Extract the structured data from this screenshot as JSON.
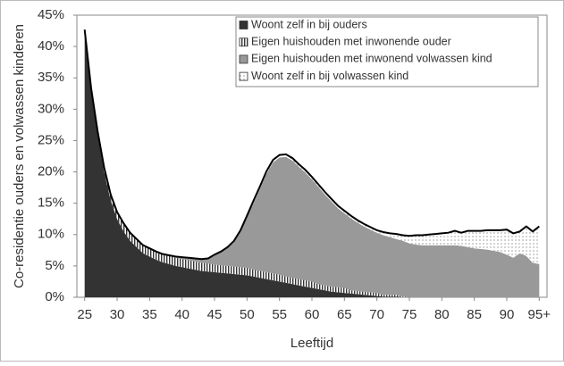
{
  "chart_data": {
    "type": "stacked-area",
    "y_label": "Co-residentie ouders en volwassen kinderen",
    "x_label": "Leeftijd",
    "x": [
      25,
      26,
      27,
      28,
      29,
      30,
      31,
      32,
      33,
      34,
      35,
      36,
      37,
      38,
      39,
      40,
      41,
      42,
      43,
      44,
      45,
      46,
      47,
      48,
      49,
      50,
      51,
      52,
      53,
      54,
      55,
      56,
      57,
      58,
      59,
      60,
      61,
      62,
      63,
      64,
      65,
      66,
      67,
      68,
      69,
      70,
      71,
      72,
      73,
      74,
      75,
      76,
      77,
      78,
      79,
      80,
      81,
      82,
      83,
      84,
      85,
      86,
      87,
      88,
      89,
      90,
      91,
      92,
      93,
      94,
      95
    ],
    "xlim": [
      23.8,
      96.2
    ],
    "xticks": [
      25,
      30,
      35,
      40,
      45,
      50,
      55,
      60,
      65,
      70,
      75,
      80,
      85,
      90,
      {
        "value": 95,
        "label": "95+"
      }
    ],
    "ylim": [
      0,
      45
    ],
    "yticks": [
      {
        "value": 0,
        "label": "0%"
      },
      {
        "value": 5,
        "label": "5%"
      },
      {
        "value": 10,
        "label": "10%"
      },
      {
        "value": 15,
        "label": "15%"
      },
      {
        "value": 20,
        "label": "20%"
      },
      {
        "value": 25,
        "label": "25%"
      },
      {
        "value": 30,
        "label": "30%"
      },
      {
        "value": 35,
        "label": "35%"
      },
      {
        "value": 40,
        "label": "40%"
      },
      {
        "value": 45,
        "label": "45%"
      }
    ],
    "grid": false,
    "legend": "upper right",
    "series": [
      {
        "name": "Woont zelf in bij ouders",
        "color": "#333333",
        "pattern": "solid",
        "values": [
          42.5,
          33,
          26,
          20,
          15.5,
          12.5,
          10.5,
          9,
          8,
          7,
          6.5,
          6,
          5.6,
          5.3,
          5,
          4.8,
          4.6,
          4.4,
          4.2,
          4.1,
          4.0,
          3.9,
          3.8,
          3.7,
          3.6,
          3.5,
          3.3,
          3.1,
          2.9,
          2.7,
          2.5,
          2.3,
          2.1,
          1.9,
          1.7,
          1.5,
          1.3,
          1.1,
          0.9,
          0.8,
          0.7,
          0.6,
          0.5,
          0.4,
          0.3,
          0.2,
          0.1,
          0.1,
          0.1,
          0,
          0,
          0,
          0,
          0,
          0,
          0,
          0,
          0,
          0,
          0,
          0,
          0,
          0,
          0,
          0,
          0,
          0,
          0,
          0,
          0,
          0
        ]
      },
      {
        "name": "Eigen huishouden met inwonende ouder",
        "color": "#333333",
        "pattern": "stripes",
        "values": [
          0.2,
          0.3,
          0.5,
          0.7,
          0.9,
          1.1,
          1.3,
          1.3,
          1.3,
          1.3,
          1.3,
          1.3,
          1.3,
          1.3,
          1.3,
          1.3,
          1.3,
          1.3,
          1.3,
          1.3,
          1.2,
          1.2,
          1.2,
          1.2,
          1.2,
          1.2,
          1.1,
          1.1,
          1.1,
          1.1,
          1.1,
          1.0,
          1.0,
          1.0,
          1.0,
          1.0,
          0.8,
          0.8,
          0.8,
          0.8,
          0.8,
          0.5,
          0.5,
          0.5,
          0.5,
          0.5,
          0.3,
          0.3,
          0.3,
          0.1,
          0,
          0,
          0,
          0,
          0,
          0,
          0,
          0,
          0,
          0,
          0,
          0,
          0,
          0,
          0,
          0,
          0,
          0,
          0,
          0,
          0
        ]
      },
      {
        "name": "Eigen huishouden met inwonend volwassen kind",
        "color": "#999999",
        "pattern": "solid",
        "values": [
          0,
          0,
          0,
          0,
          0,
          0,
          0,
          0,
          0,
          0,
          0,
          0,
          0,
          0.1,
          0.2,
          0.3,
          0.4,
          0.5,
          0.6,
          0.8,
          1.6,
          2.2,
          3,
          4.1,
          5.9,
          8.1,
          10.6,
          13.1,
          15.7,
          17.7,
          18.7,
          19.1,
          18.7,
          17.9,
          17.2,
          16.3,
          15.5,
          14.5,
          13.6,
          12.6,
          11.9,
          11.5,
          10.9,
          10.4,
          10,
          9.6,
          9.5,
          9.2,
          8.9,
          8.9,
          8.6,
          8.4,
          8.3,
          8.3,
          8.3,
          8.3,
          8.3,
          8.3,
          8.2,
          8.0,
          7.8,
          7.7,
          7.6,
          7.4,
          7.2,
          6.8,
          6.3,
          7.0,
          6.6,
          5.5,
          5.3
        ]
      },
      {
        "name": "Woont zelf in bij volwassen kind",
        "color": "#ffffff",
        "pattern": "dots",
        "values": [
          0,
          0,
          0,
          0,
          0,
          0,
          0,
          0,
          0,
          0,
          0,
          0,
          0,
          0,
          0,
          0,
          0,
          0,
          0,
          0,
          0,
          0,
          0,
          0,
          0,
          0.2,
          0.4,
          0.4,
          0.4,
          0.4,
          0.4,
          0.4,
          0.4,
          0.4,
          0.4,
          0.4,
          0.4,
          0.4,
          0.4,
          0.4,
          0.4,
          0.4,
          0.4,
          0.4,
          0.4,
          0.4,
          0.5,
          0.6,
          0.8,
          0.9,
          1.2,
          1.5,
          1.6,
          1.7,
          1.8,
          1.9,
          2.0,
          2.3,
          2.1,
          2.6,
          2.8,
          2.9,
          3.1,
          3.3,
          3.5,
          4.0,
          3.9,
          3.5,
          4.7,
          5.0,
          6.0
        ]
      }
    ]
  }
}
